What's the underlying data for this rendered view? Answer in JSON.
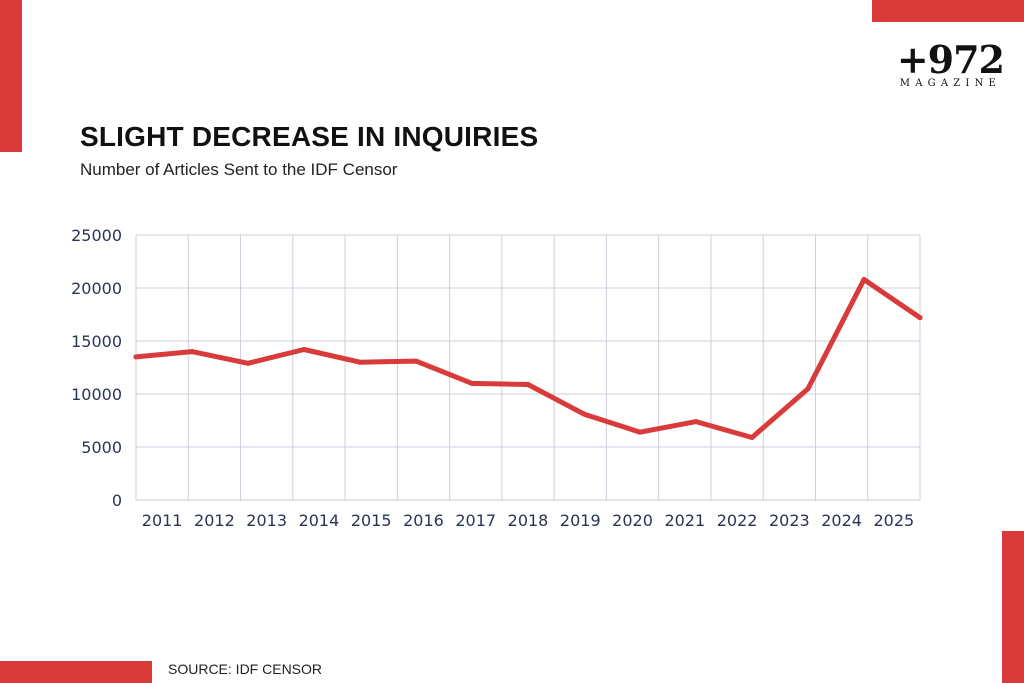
{
  "brand": {
    "logo_main": "+972",
    "logo_sub": "MAGAZINE"
  },
  "colors": {
    "accent": "#d93a3a",
    "grid": "#c8cfdc",
    "line": "#d93a3a"
  },
  "source_note": "SOURCE: IDF CENSOR",
  "chart_data": {
    "type": "line",
    "title": "SLIGHT DECREASE IN INQUIRIES",
    "subtitle": "Number of Articles Sent to the IDF Censor",
    "xlabel": "",
    "ylabel": "",
    "categories": [
      "2011",
      "2012",
      "2013",
      "2014",
      "2015",
      "2016",
      "2017",
      "2018",
      "2019",
      "2020",
      "2021",
      "2022",
      "2023",
      "2024",
      "2025"
    ],
    "series": [
      {
        "values": [
          13500,
          14000,
          12900,
          14200,
          13000,
          13100,
          11000,
          10900,
          8100,
          6400,
          7400,
          5900,
          10500,
          20800,
          17200
        ]
      }
    ],
    "ylim": [
      0,
      25000
    ],
    "yticks": [
      0,
      5000,
      10000,
      15000,
      20000,
      25000
    ],
    "grid": true,
    "legend": "none"
  }
}
